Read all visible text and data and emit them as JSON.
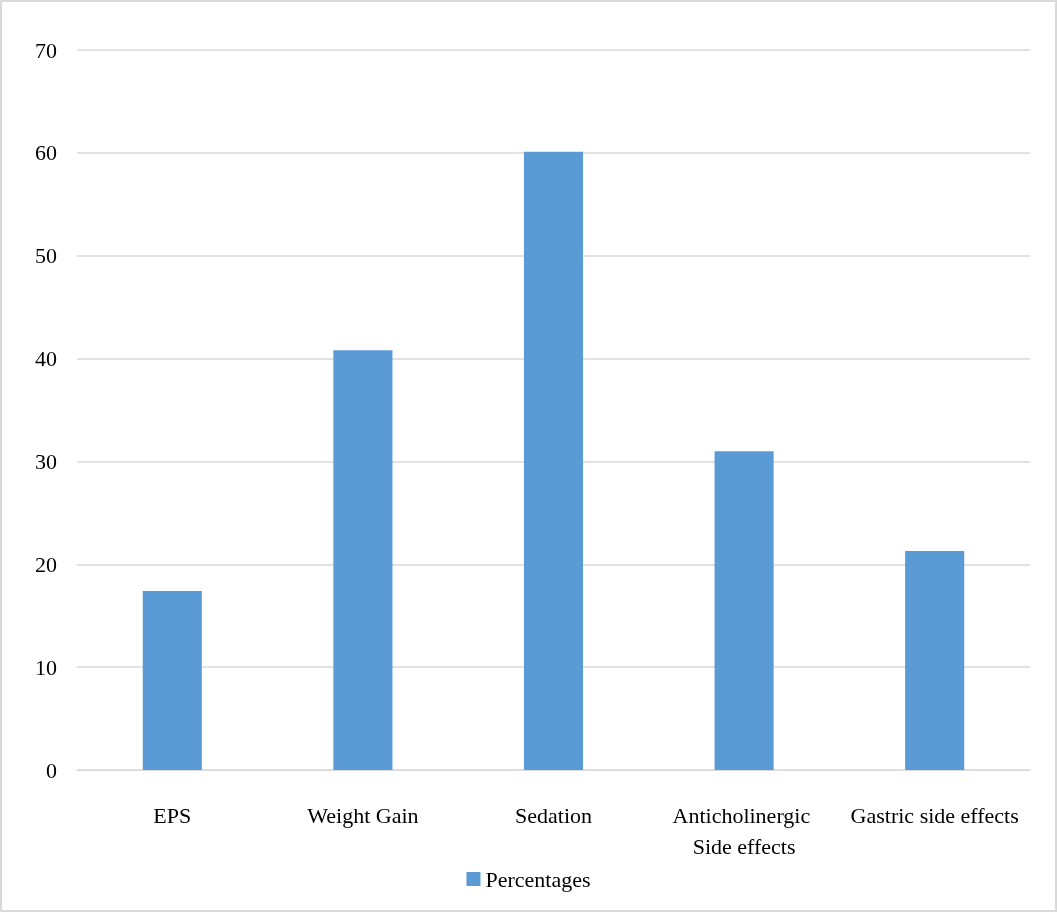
{
  "chart_data": {
    "type": "bar",
    "categories": [
      "EPS",
      "Weight Gain",
      "Sedation",
      "Anticholinergic Side effects",
      "Gastric side effects"
    ],
    "series": [
      {
        "name": "Percentages",
        "color": "#5b9bd5",
        "values": [
          17.4,
          40.8,
          60.1,
          31.0,
          21.3
        ]
      }
    ],
    "ylim": [
      0,
      70
    ],
    "yticks": [
      0,
      10,
      20,
      30,
      40,
      50,
      60,
      70
    ],
    "grid": "y",
    "legend": "bottom"
  }
}
